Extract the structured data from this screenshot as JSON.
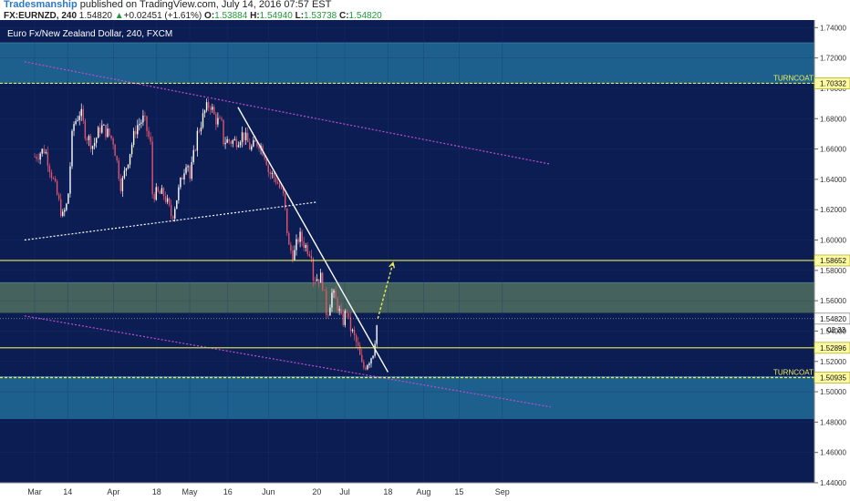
{
  "header": {
    "author": "Tradesmanship",
    "published_text": "published on TradingView.com, July 14, 2016 07:57 EST",
    "symbol": "FX:EURNZD, 240",
    "last": "1.54820",
    "change_arrow": "▲",
    "change": "+0.02451 (+1.61%)",
    "o_label": "O:",
    "o_value": "1.53884",
    "h_label": "H:",
    "h_value": "1.54940",
    "l_label": "L:",
    "l_value": "1.53738",
    "c_label": "C:",
    "c_value": "1.54820"
  },
  "chart_title": "Euro Fx/New Zealand Dollar, 240, FXCM",
  "colors": {
    "background": "#0b1d53",
    "zone": "#1f6793",
    "zone_mid": "#4d6a5e",
    "support_line": "#e9ea54",
    "trendline": "#ffffff",
    "channel_line": "#c24dce",
    "candle_up": "#ffffff",
    "candle_down": "#e0546e",
    "price_label_bg": "#ffffff",
    "turncoat_label": "#f0f060"
  },
  "chart_data": {
    "type": "candlestick",
    "title": "Euro Fx/New Zealand Dollar, 240, FXCM",
    "symbol": "FX:EURNZD",
    "timeframe": "240",
    "x_ticks": [
      "Mar",
      "14",
      "Apr",
      "18",
      "May",
      "16",
      "Jun",
      "20",
      "Jul",
      "18",
      "Aug",
      "15",
      "Sep"
    ],
    "y_ticks": [
      "1.74000",
      "1.72000",
      "1.70000",
      "1.68000",
      "1.66000",
      "1.64000",
      "1.62000",
      "1.60000",
      "1.58000",
      "1.56000",
      "1.54000",
      "1.52000",
      "1.50000",
      "1.48000",
      "1.46000",
      "1.44000"
    ],
    "ylim": [
      1.44,
      1.745
    ],
    "price_series": [
      [
        "Mar",
        1.655
      ],
      [
        "Mar 5",
        1.66
      ],
      [
        "Mar 9",
        1.635
      ],
      [
        "Mar 12",
        1.615
      ],
      [
        "14",
        1.625
      ],
      [
        "Mar 16",
        1.675
      ],
      [
        "Mar 19",
        1.685
      ],
      [
        "Mar 21",
        1.67
      ],
      [
        "Mar 24",
        1.662
      ],
      [
        "Mar 27",
        1.675
      ],
      [
        "Mar 30",
        1.67
      ],
      [
        "Apr",
        1.665
      ],
      [
        "Apr 4",
        1.635
      ],
      [
        "Apr 7",
        1.655
      ],
      [
        "Apr 10",
        1.675
      ],
      [
        "Apr 13",
        1.68
      ],
      [
        "Apr 16",
        1.66
      ],
      [
        "18",
        1.635
      ],
      [
        "Apr 21",
        1.63
      ],
      [
        "Apr 24",
        1.615
      ],
      [
        "Apr 27",
        1.635
      ],
      [
        "Apr 30",
        1.655
      ],
      [
        "May",
        1.64
      ],
      [
        "May 4",
        1.67
      ],
      [
        "May 7",
        1.685
      ],
      [
        "May 9",
        1.69
      ],
      [
        "May 11",
        1.68
      ],
      [
        "May 14",
        1.675
      ],
      [
        "16",
        1.672
      ],
      [
        "May 19",
        1.665
      ],
      [
        "May 22",
        1.67
      ],
      [
        "May 25",
        1.66
      ],
      [
        "May 28",
        1.665
      ],
      [
        "May 31",
        1.655
      ],
      [
        "Jun",
        1.645
      ],
      [
        "Jun 4",
        1.64
      ],
      [
        "Jun 7",
        1.628
      ],
      [
        "Jun 9",
        1.595
      ],
      [
        "Jun 11",
        1.59
      ],
      [
        "Jun 13",
        1.603
      ],
      [
        "Jun 16",
        1.595
      ],
      [
        "Jun 18",
        1.592
      ],
      [
        "20",
        1.585
      ],
      [
        "Jun 22",
        1.575
      ],
      [
        "Jun 24",
        1.55
      ],
      [
        "Jun 26",
        1.565
      ],
      [
        "Jun 28",
        1.558
      ],
      [
        "Jun 30",
        1.545
      ],
      [
        "Jul 2",
        1.555
      ],
      [
        "Jul",
        1.552
      ],
      [
        "Jul 6",
        1.53
      ],
      [
        "Jul 8",
        1.515
      ],
      [
        "Jul 10",
        1.52
      ],
      [
        "Jul 12",
        1.525
      ],
      [
        "Jul 14",
        1.5482
      ]
    ],
    "levels": [
      {
        "label": "TURNCOAT",
        "value": "1.70332",
        "style": "dashed"
      },
      {
        "label": "",
        "value": "1.58652",
        "style": "solid"
      },
      {
        "label": "",
        "value": "1.52896",
        "style": "solid"
      },
      {
        "label": "TURNCOAT",
        "value": "1.50935",
        "style": "dashed"
      }
    ],
    "zones": [
      {
        "from": 1.703,
        "to": 1.73
      },
      {
        "from": 1.552,
        "to": 1.572
      },
      {
        "from": 1.482,
        "to": 1.51
      }
    ],
    "trendline": {
      "from": [
        "May 20",
        1.6875
      ],
      "to": [
        "Jul 18",
        1.513
      ]
    },
    "channel_upper": {
      "from": [
        "Feb 26",
        1.7175
      ],
      "to": [
        "Sep 20",
        1.65
      ]
    },
    "channel_lower": {
      "from": [
        "Feb 26",
        1.55
      ],
      "to": [
        "Sep 20",
        1.49
      ]
    },
    "support_dotted": {
      "from": [
        "Feb 26",
        1.6
      ],
      "to": [
        "Jun 20",
        1.625
      ]
    },
    "projection": {
      "from": [
        "Jul 14",
        1.5482
      ],
      "to": [
        "Jul 20",
        1.585
      ]
    },
    "last_price": "1.54820",
    "countdown": "02:33"
  }
}
